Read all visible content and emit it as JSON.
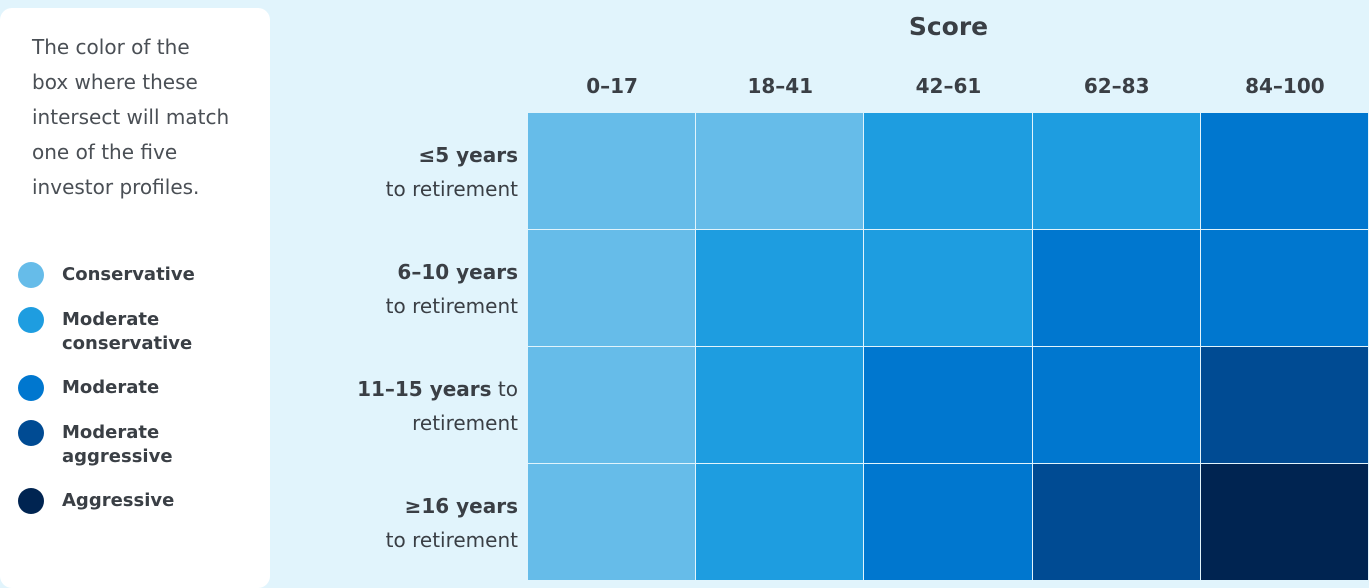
{
  "intro": "The color of the box where these intersect will match one of the five investor profiles.",
  "legend": [
    {
      "name": "Conservative",
      "color": "#66bce9"
    },
    {
      "name": "Moderate conservative",
      "color": "#1e9de0"
    },
    {
      "name": "Moderate",
      "color": "#0077cf"
    },
    {
      "name": "Moderate aggressive",
      "color": "#004b93"
    },
    {
      "name": "Aggressive",
      "color": "#002451"
    }
  ],
  "grid": {
    "title": "Score",
    "columns": [
      "0–17",
      "18–41",
      "42–61",
      "62–83",
      "84–100"
    ],
    "rows": [
      {
        "bold": "≤5 years",
        "text": "to retirement",
        "line_break": true,
        "cells": [
          0,
          0,
          1,
          1,
          2
        ]
      },
      {
        "bold": "6–10 years",
        "text": "to retirement",
        "line_break": true,
        "cells": [
          0,
          1,
          1,
          2,
          2
        ]
      },
      {
        "bold": "11–15 years",
        "text": "to retirement",
        "line_break": false,
        "cells": [
          0,
          1,
          2,
          2,
          3
        ]
      },
      {
        "bold": "≥16 years",
        "text": "to retirement",
        "line_break": true,
        "cells": [
          0,
          1,
          2,
          3,
          4
        ]
      }
    ]
  }
}
